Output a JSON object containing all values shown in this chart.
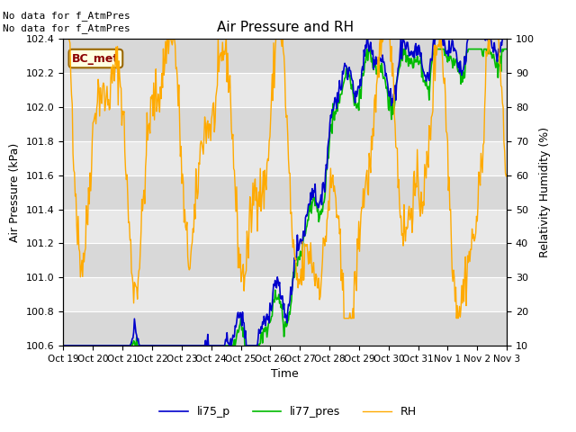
{
  "title": "Air Pressure and RH",
  "ylabel_left": "Air Pressure (kPa)",
  "ylabel_right": "Relativity Humidity (%)",
  "xlabel": "Time",
  "annotation_line1": "No data for f_AtmPres",
  "annotation_line2": "No data for f_AtmPres",
  "bc_met_label": "BC_met",
  "ylim_left": [
    100.6,
    102.4
  ],
  "ylim_right": [
    10,
    100
  ],
  "yticks_left": [
    100.6,
    100.8,
    101.0,
    101.2,
    101.4,
    101.6,
    101.8,
    102.0,
    102.2,
    102.4
  ],
  "yticks_right": [
    10,
    20,
    30,
    40,
    50,
    60,
    70,
    80,
    90,
    100
  ],
  "xtick_labels": [
    "Oct 19",
    "Oct 20",
    "Oct 21",
    "Oct 22",
    "Oct 23",
    "Oct 24",
    "Oct 25",
    "Oct 26",
    "Oct 27",
    "Oct 28",
    "Oct 29",
    "Oct 30",
    "Oct 31",
    "Nov 1",
    "Nov 2",
    "Nov 3"
  ],
  "color_li75": "#0000cc",
  "color_li77": "#00bb00",
  "color_rh": "#ffaa00",
  "fig_facecolor": "#ffffff",
  "axes_facecolor": "#f0f0f0",
  "band_color_dark": "#d8d8d8",
  "band_color_light": "#e8e8e8",
  "grid_color": "#ffffff",
  "n_points": 600,
  "figsize": [
    6.4,
    4.8
  ],
  "dpi": 100
}
